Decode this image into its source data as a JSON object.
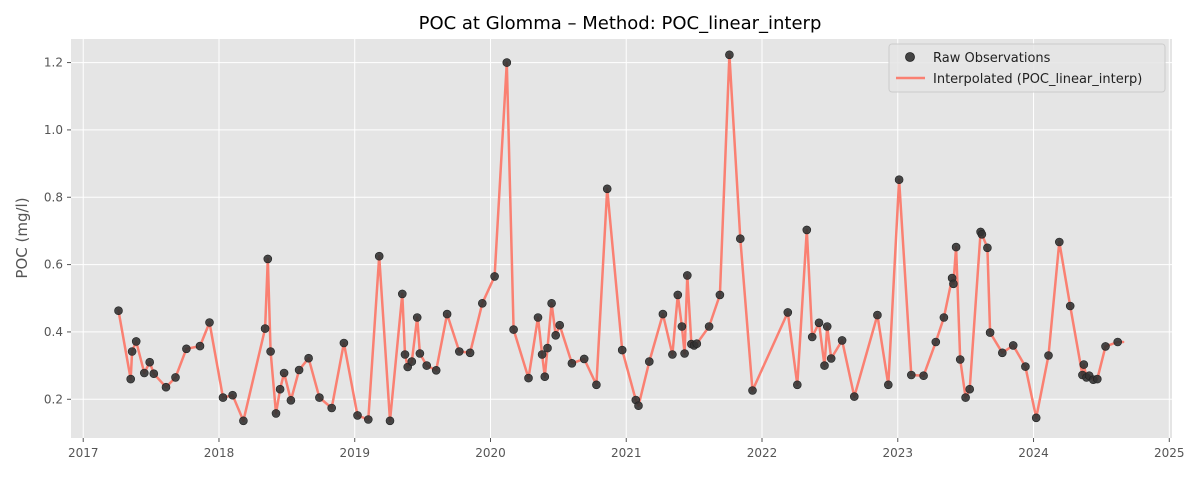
{
  "chart_data": {
    "type": "line",
    "title": "POC at Glomma – Method: POC_linear_interp",
    "xlabel": "",
    "ylabel": "POC (mg/l)",
    "xlim": [
      2016.91,
      2025.02
    ],
    "ylim": [
      0.085,
      1.27
    ],
    "x_ticks": [
      2017,
      2018,
      2019,
      2020,
      2021,
      2022,
      2023,
      2024,
      2025
    ],
    "x_tick_labels": [
      "2017",
      "2018",
      "2019",
      "2020",
      "2021",
      "2022",
      "2023",
      "2024",
      "2025"
    ],
    "y_ticks": [
      0.2,
      0.4,
      0.6,
      0.8,
      1.0,
      1.2
    ],
    "y_tick_labels": [
      "0.2",
      "0.4",
      "0.6",
      "0.8",
      "1.0",
      "1.2"
    ],
    "grid": true,
    "legend_position": "top-right",
    "legend": [
      "Raw Observations",
      "Interpolated (POC_linear_interp)"
    ],
    "colors": {
      "background": "#e5e5e5",
      "grid": "#ffffff",
      "line": "#fa8072",
      "marker": "#333333"
    },
    "series": [
      {
        "name": "Raw Observations",
        "kind": "scatter",
        "x": [
          2017.26,
          2017.35,
          2017.36,
          2017.39,
          2017.45,
          2017.49,
          2017.52,
          2017.61,
          2017.68,
          2017.76,
          2017.86,
          2017.93,
          2018.03,
          2018.1,
          2018.18,
          2018.34,
          2018.36,
          2018.38,
          2018.42,
          2018.45,
          2018.48,
          2018.53,
          2018.59,
          2018.66,
          2018.74,
          2018.83,
          2018.92,
          2019.02,
          2019.1,
          2019.18,
          2019.26,
          2019.35,
          2019.37,
          2019.39,
          2019.42,
          2019.46,
          2019.48,
          2019.53,
          2019.6,
          2019.68,
          2019.77,
          2019.85,
          2019.94,
          2020.03,
          2020.12,
          2020.17,
          2020.28,
          2020.35,
          2020.38,
          2020.4,
          2020.42,
          2020.45,
          2020.48,
          2020.51,
          2020.6,
          2020.69,
          2020.78,
          2020.86,
          2020.97,
          2021.07,
          2021.09,
          2021.17,
          2021.27,
          2021.34,
          2021.38,
          2021.41,
          2021.43,
          2021.45,
          2021.48,
          2021.5,
          2021.52,
          2021.61,
          2021.69,
          2021.76,
          2021.84,
          2021.93,
          2022.19,
          2022.26,
          2022.33,
          2022.37,
          2022.42,
          2022.46,
          2022.48,
          2022.51,
          2022.59,
          2022.68,
          2022.85,
          2022.93,
          2023.01,
          2023.1,
          2023.19,
          2023.28,
          2023.34,
          2023.4,
          2023.41,
          2023.43,
          2023.46,
          2023.5,
          2023.53,
          2023.61,
          2023.62,
          2023.66,
          2023.68,
          2023.77,
          2023.85,
          2023.94,
          2024.02,
          2024.11,
          2024.19,
          2024.27,
          2024.36,
          2024.37,
          2024.39,
          2024.41,
          2024.44,
          2024.47,
          2024.53,
          2024.62
        ],
        "y": [
          0.463,
          0.26,
          0.342,
          0.372,
          0.278,
          0.31,
          0.276,
          0.236,
          0.265,
          0.35,
          0.358,
          0.428,
          0.205,
          0.212,
          0.136,
          0.41,
          0.617,
          0.342,
          0.158,
          0.23,
          0.278,
          0.197,
          0.287,
          0.322,
          0.205,
          0.174,
          0.367,
          0.152,
          0.14,
          0.625,
          0.136,
          0.513,
          0.333,
          0.296,
          0.312,
          0.443,
          0.336,
          0.3,
          0.286,
          0.453,
          0.342,
          0.338,
          0.485,
          0.565,
          1.2,
          0.407,
          0.263,
          0.443,
          0.333,
          0.267,
          0.352,
          0.485,
          0.39,
          0.42,
          0.307,
          0.32,
          0.243,
          0.825,
          0.346,
          0.198,
          0.181,
          0.312,
          0.453,
          0.333,
          0.51,
          0.416,
          0.336,
          0.568,
          0.364,
          0.36,
          0.365,
          0.416,
          0.51,
          1.223,
          0.677,
          0.226,
          0.458,
          0.243,
          0.703,
          0.385,
          0.427,
          0.3,
          0.416,
          0.321,
          0.375,
          0.208,
          0.45,
          0.243,
          0.852,
          0.272,
          0.27,
          0.37,
          0.443,
          0.56,
          0.543,
          0.652,
          0.318,
          0.205,
          0.23,
          0.697,
          0.69,
          0.65,
          0.398,
          0.338,
          0.36,
          0.297,
          0.145,
          0.33,
          0.667,
          0.477,
          0.272,
          0.303,
          0.265,
          0.27,
          0.258,
          0.26,
          0.357,
          0.37
        ]
      },
      {
        "name": "Interpolated (POC_linear_interp)",
        "kind": "line",
        "x": [
          2017.26,
          2017.35,
          2017.36,
          2017.39,
          2017.45,
          2017.49,
          2017.52,
          2017.61,
          2017.68,
          2017.76,
          2017.86,
          2017.93,
          2018.03,
          2018.1,
          2018.18,
          2018.34,
          2018.36,
          2018.38,
          2018.42,
          2018.45,
          2018.48,
          2018.53,
          2018.59,
          2018.66,
          2018.74,
          2018.83,
          2018.92,
          2019.02,
          2019.1,
          2019.18,
          2019.26,
          2019.35,
          2019.37,
          2019.39,
          2019.42,
          2019.46,
          2019.48,
          2019.53,
          2019.6,
          2019.68,
          2019.77,
          2019.85,
          2019.94,
          2020.03,
          2020.12,
          2020.17,
          2020.28,
          2020.35,
          2020.38,
          2020.4,
          2020.42,
          2020.45,
          2020.48,
          2020.51,
          2020.6,
          2020.69,
          2020.78,
          2020.86,
          2020.97,
          2021.07,
          2021.09,
          2021.17,
          2021.27,
          2021.34,
          2021.38,
          2021.41,
          2021.43,
          2021.45,
          2021.48,
          2021.5,
          2021.52,
          2021.61,
          2021.69,
          2021.76,
          2021.84,
          2021.93,
          2022.19,
          2022.26,
          2022.33,
          2022.37,
          2022.42,
          2022.46,
          2022.48,
          2022.51,
          2022.59,
          2022.68,
          2022.85,
          2022.93,
          2023.01,
          2023.1,
          2023.19,
          2023.28,
          2023.34,
          2023.4,
          2023.41,
          2023.43,
          2023.46,
          2023.5,
          2023.53,
          2023.61,
          2023.62,
          2023.66,
          2023.68,
          2023.77,
          2023.85,
          2023.94,
          2024.02,
          2024.11,
          2024.19,
          2024.27,
          2024.36,
          2024.37,
          2024.39,
          2024.41,
          2024.44,
          2024.47,
          2024.53,
          2024.62,
          2024.66
        ],
        "y": [
          0.463,
          0.26,
          0.342,
          0.372,
          0.278,
          0.31,
          0.276,
          0.236,
          0.265,
          0.35,
          0.358,
          0.428,
          0.205,
          0.212,
          0.136,
          0.41,
          0.617,
          0.342,
          0.158,
          0.23,
          0.278,
          0.197,
          0.287,
          0.322,
          0.205,
          0.174,
          0.367,
          0.152,
          0.14,
          0.625,
          0.136,
          0.513,
          0.333,
          0.296,
          0.312,
          0.443,
          0.336,
          0.3,
          0.286,
          0.453,
          0.342,
          0.338,
          0.485,
          0.565,
          1.2,
          0.407,
          0.263,
          0.443,
          0.333,
          0.267,
          0.352,
          0.485,
          0.39,
          0.42,
          0.307,
          0.32,
          0.243,
          0.825,
          0.346,
          0.198,
          0.181,
          0.312,
          0.453,
          0.333,
          0.51,
          0.416,
          0.336,
          0.568,
          0.364,
          0.36,
          0.365,
          0.416,
          0.51,
          1.223,
          0.677,
          0.226,
          0.458,
          0.243,
          0.703,
          0.385,
          0.427,
          0.3,
          0.416,
          0.321,
          0.375,
          0.208,
          0.45,
          0.243,
          0.852,
          0.272,
          0.27,
          0.37,
          0.443,
          0.56,
          0.543,
          0.652,
          0.318,
          0.205,
          0.23,
          0.697,
          0.69,
          0.65,
          0.398,
          0.338,
          0.36,
          0.297,
          0.145,
          0.33,
          0.667,
          0.477,
          0.272,
          0.303,
          0.265,
          0.27,
          0.258,
          0.26,
          0.357,
          0.37,
          0.37
        ]
      }
    ]
  }
}
